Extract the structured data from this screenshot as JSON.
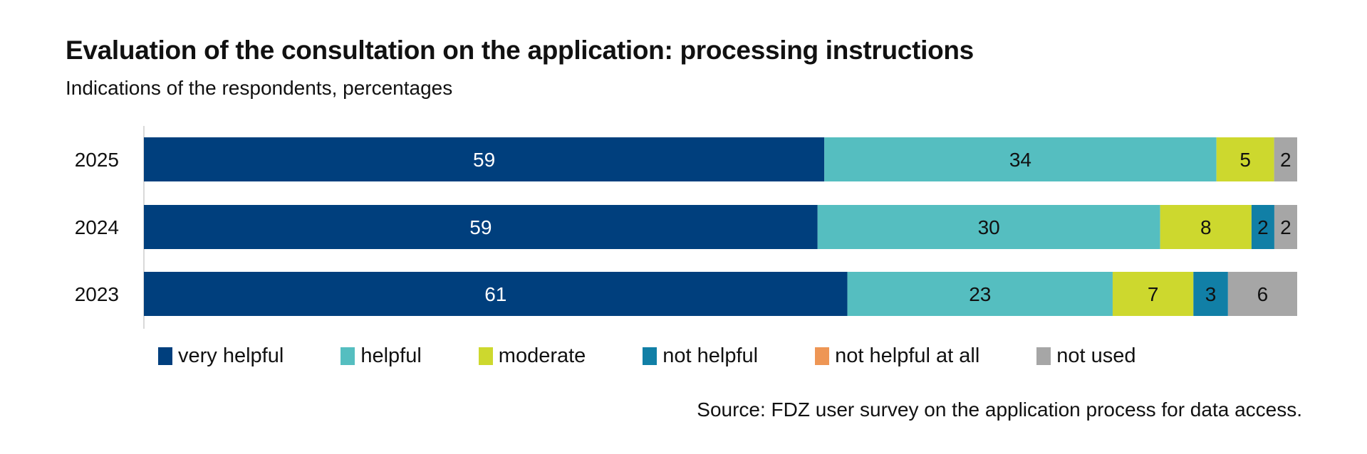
{
  "chart_data": {
    "type": "bar",
    "orientation": "horizontal",
    "stacked": true,
    "title": "Evaluation of the consultation on the application: processing instructions",
    "subtitle": "Indications of the respondents, percentages",
    "categories": [
      "2025",
      "2024",
      "2023"
    ],
    "series": [
      {
        "name": "very helpful",
        "color": "#003f7d",
        "label_color": "#ffffff",
        "values": [
          59,
          59,
          61
        ]
      },
      {
        "name": "helpful",
        "color": "#55bec0",
        "label_color": "#111111",
        "values": [
          34,
          30,
          23
        ]
      },
      {
        "name": "moderate",
        "color": "#cdd82e",
        "label_color": "#111111",
        "values": [
          5,
          8,
          7
        ]
      },
      {
        "name": "not helpful",
        "color": "#117fa6",
        "label_color": "#111111",
        "values": [
          0,
          2,
          3
        ]
      },
      {
        "name": "not helpful at all",
        "color": "#ee9655",
        "label_color": "#111111",
        "values": [
          0,
          0,
          0
        ]
      },
      {
        "name": "not used",
        "color": "#a6a6a6",
        "label_color": "#111111",
        "values": [
          2,
          2,
          6
        ]
      }
    ],
    "grid": false,
    "legend_position": "bottom",
    "source": "Source: FDZ user survey on the application process for data access."
  }
}
